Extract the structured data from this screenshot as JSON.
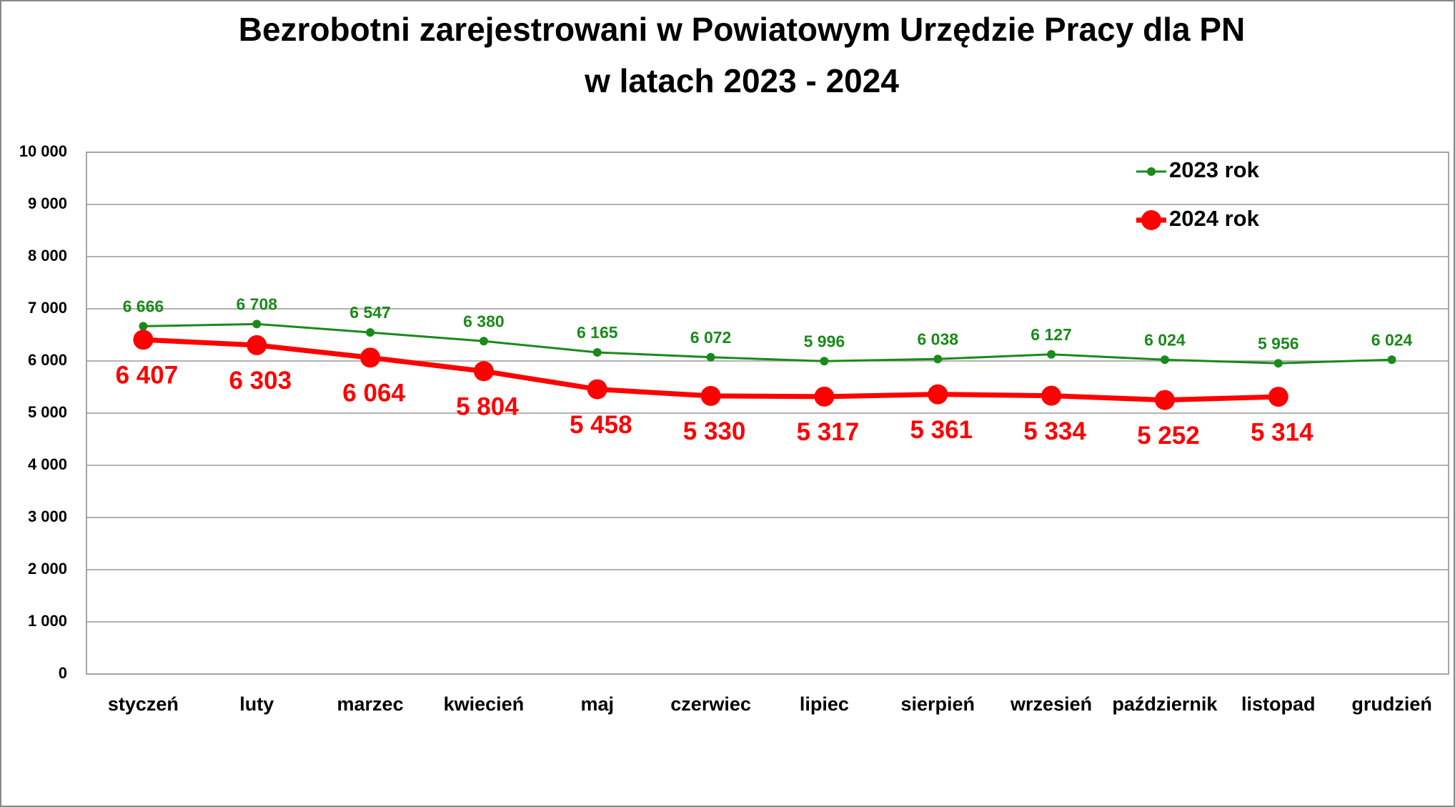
{
  "chart_data": {
    "type": "line",
    "title": [
      "Bezrobotni zarejestrowani w Powiatowym Urzędzie Pracy dla PN",
      "w latach 2023 - 2024"
    ],
    "categories": [
      "styczeń",
      "luty",
      "marzec",
      "kwiecień",
      "maj",
      "czerwiec",
      "lipiec",
      "sierpień",
      "wrzesień",
      "październik",
      "listopad",
      "grudzień"
    ],
    "series": [
      {
        "name": "2023 rok",
        "color": "#1a8a1a",
        "values": [
          6666,
          6708,
          6547,
          6380,
          6165,
          6072,
          5996,
          6038,
          6127,
          6024,
          5956,
          6024
        ],
        "value_labels": [
          "6 666",
          "6 708",
          "6 547",
          "6 380",
          "6 165",
          "6 072",
          "5 996",
          "6 038",
          "6 127",
          "6 024",
          "5 956",
          "6 024"
        ]
      },
      {
        "name": "2024 rok",
        "color": "#ff0000",
        "values": [
          6407,
          6303,
          6064,
          5804,
          5458,
          5330,
          5317,
          5361,
          5334,
          5252,
          5314,
          null
        ],
        "value_labels": [
          "6 407",
          "6 303",
          "6 064",
          "5 804",
          "5 458",
          "5 330",
          "5 317",
          "5 361",
          "5 334",
          "5 252",
          "5 314",
          null
        ]
      }
    ],
    "ylim": [
      0,
      10000
    ],
    "yticks": [
      0,
      {
        "value": 1000,
        "label": "1 000"
      },
      {
        "value": 2000,
        "label": "2 000"
      },
      {
        "value": 3000,
        "label": "3 000"
      },
      {
        "value": 4000,
        "label": "4 000"
      },
      {
        "value": 5000,
        "label": "5 000"
      },
      {
        "value": 6000,
        "label": "6 000"
      },
      {
        "value": 7000,
        "label": "7 000"
      },
      {
        "value": 8000,
        "label": "8 000"
      },
      {
        "value": 9000,
        "label": "9 000"
      },
      {
        "value": 10000,
        "label": "10 000"
      }
    ],
    "grid": true,
    "legend": "top-right"
  }
}
